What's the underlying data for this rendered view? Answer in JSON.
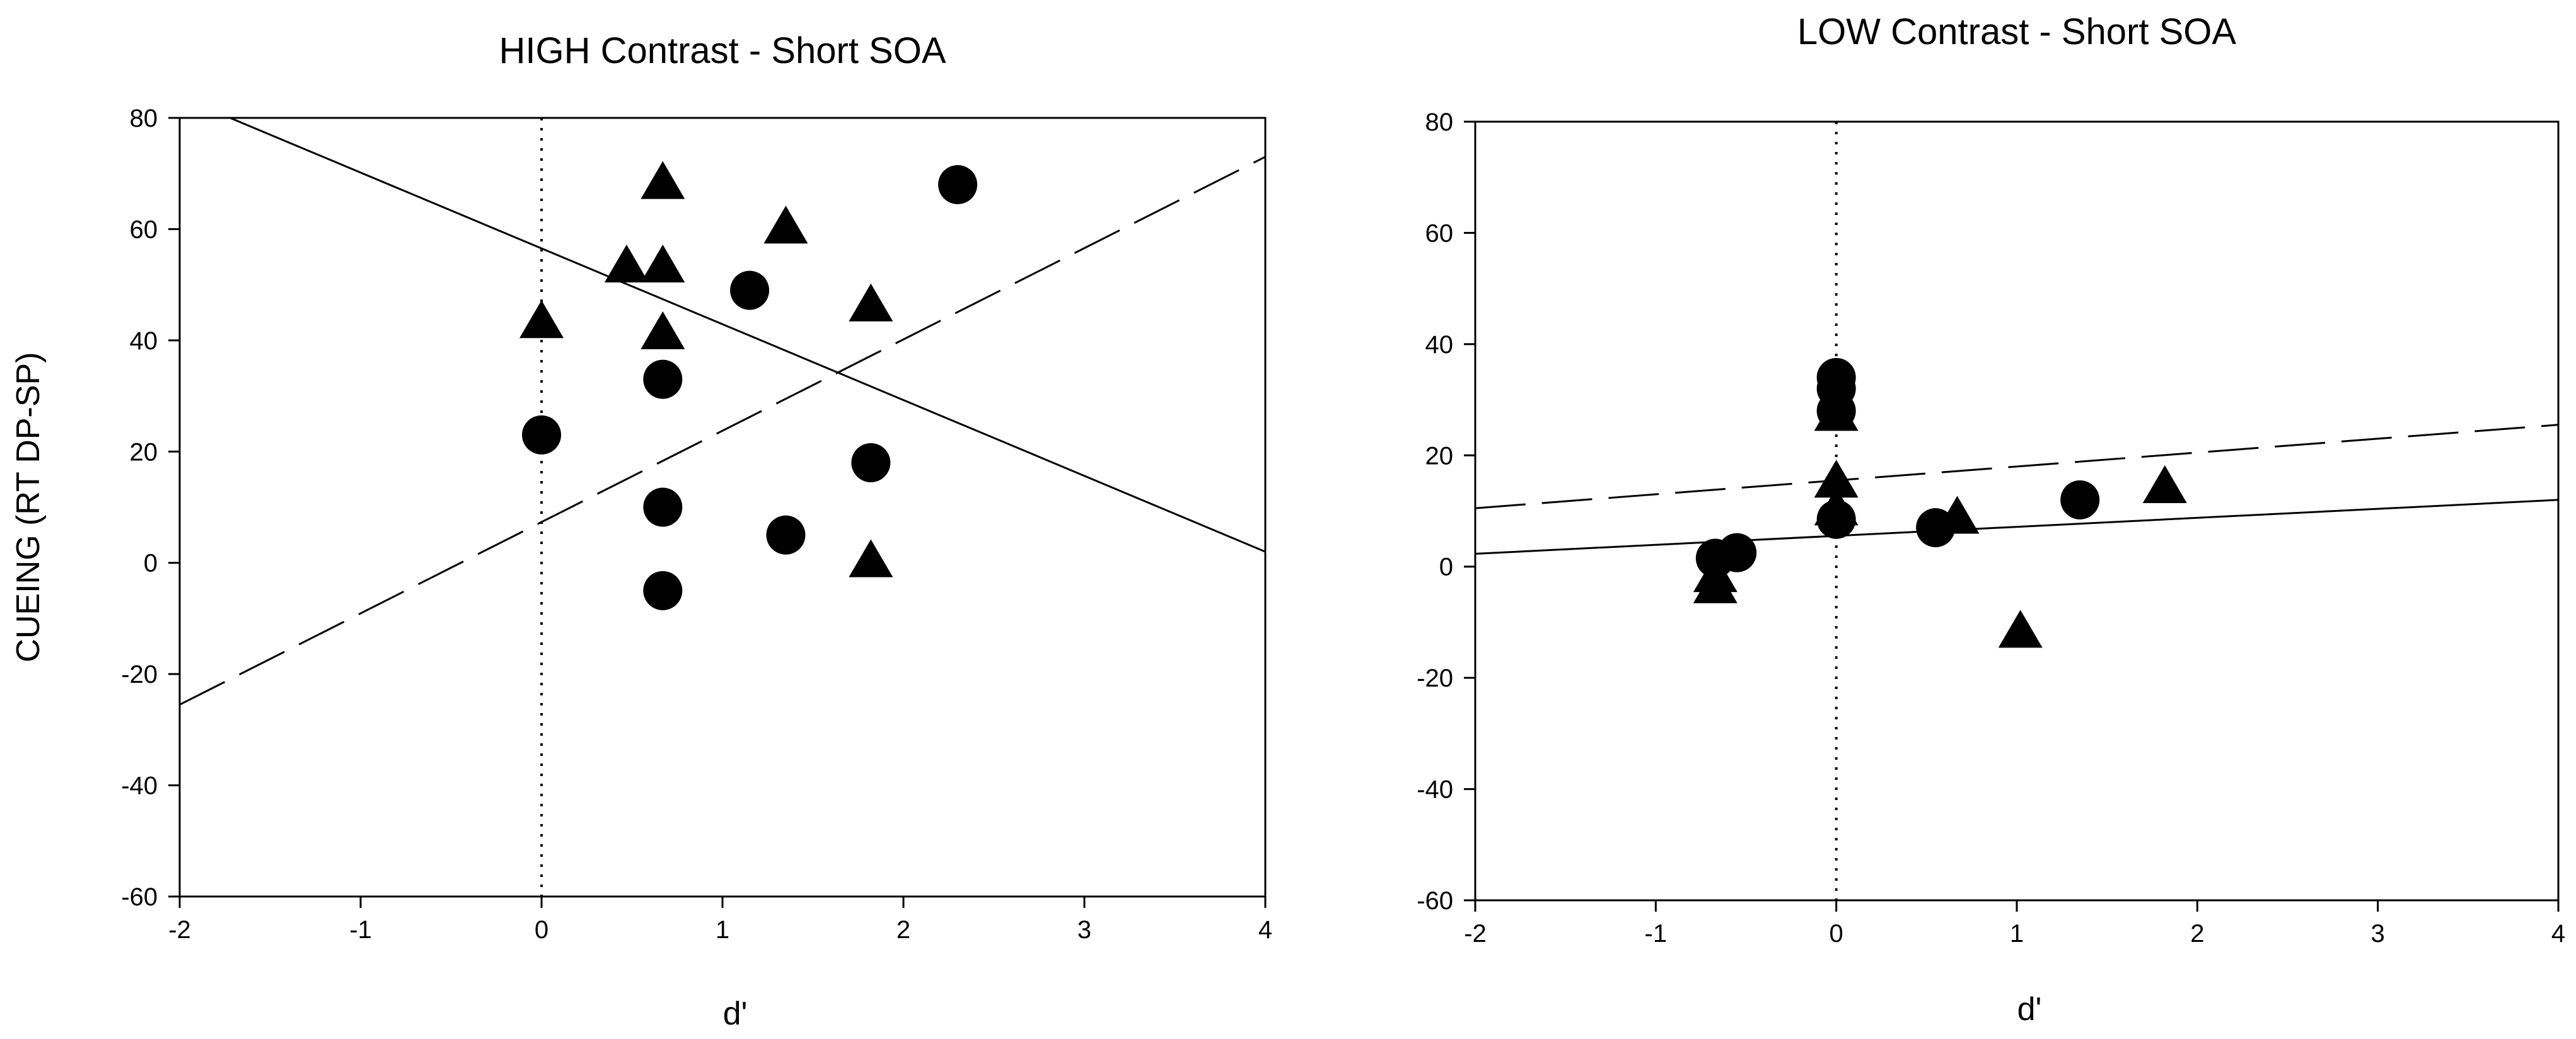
{
  "chart_data": [
    {
      "type": "scatter",
      "title": "HIGH Contrast - Short SOA",
      "xlabel": "d'",
      "ylabel": "CUEING (RT DP-SP)",
      "xlim": [
        -2,
        4
      ],
      "ylim": [
        -60,
        80
      ],
      "xticks": [
        "-2",
        "-1",
        "0",
        "1",
        "2",
        "3",
        "4"
      ],
      "yticks": [
        "-60",
        "-40",
        "-20",
        "0",
        "20",
        "40",
        "60",
        "80"
      ],
      "grid": false,
      "reference_line": {
        "x": 0,
        "style": "dotted"
      },
      "series": [
        {
          "marker": "circle",
          "points": [
            {
              "x": 0.0,
              "y": 23
            },
            {
              "x": 0.67,
              "y": 33
            },
            {
              "x": 0.67,
              "y": 10
            },
            {
              "x": 0.67,
              "y": -5
            },
            {
              "x": 1.15,
              "y": 49
            },
            {
              "x": 1.35,
              "y": 5
            },
            {
              "x": 1.82,
              "y": 18
            },
            {
              "x": 2.3,
              "y": 68
            }
          ]
        },
        {
          "marker": "triangle",
          "points": [
            {
              "x": 0.0,
              "y": 43
            },
            {
              "x": 0.47,
              "y": 53
            },
            {
              "x": 0.67,
              "y": 68
            },
            {
              "x": 0.67,
              "y": 53
            },
            {
              "x": 0.67,
              "y": 41
            },
            {
              "x": 1.35,
              "y": 60
            },
            {
              "x": 1.82,
              "y": 46
            },
            {
              "x": 1.82,
              "y": 0
            }
          ]
        }
      ],
      "fit_lines": [
        {
          "style": "solid",
          "x": [
            -2,
            4
          ],
          "y": [
            83.8,
            2.0
          ]
        },
        {
          "style": "dashed",
          "x": [
            -2,
            4
          ],
          "y": [
            -25.5,
            73.0
          ]
        }
      ]
    },
    {
      "type": "scatter",
      "title": "LOW Contrast - Short SOA",
      "xlabel": "d'",
      "ylabel": "",
      "xlim": [
        -2,
        4
      ],
      "ylim": [
        -60,
        80
      ],
      "xticks": [
        "-2",
        "-1",
        "0",
        "1",
        "2",
        "3",
        "4"
      ],
      "yticks": [
        "-60",
        "-40",
        "-20",
        "0",
        "20",
        "40",
        "60",
        "80"
      ],
      "grid": false,
      "reference_line": {
        "x": 0,
        "style": "dotted"
      },
      "series": [
        {
          "marker": "circle",
          "points": [
            {
              "x": -0.67,
              "y": 1.5
            },
            {
              "x": -0.55,
              "y": 2.5
            },
            {
              "x": 0.0,
              "y": 34
            },
            {
              "x": 0.0,
              "y": 32
            },
            {
              "x": 0.0,
              "y": 28
            },
            {
              "x": 0.0,
              "y": 8.5
            },
            {
              "x": 0.55,
              "y": 7
            },
            {
              "x": 1.35,
              "y": 12
            }
          ]
        },
        {
          "marker": "triangle",
          "points": [
            {
              "x": -0.67,
              "y": -2
            },
            {
              "x": -0.67,
              "y": -4
            },
            {
              "x": 0.0,
              "y": 27
            },
            {
              "x": 0.0,
              "y": 15
            },
            {
              "x": 0.0,
              "y": 10
            },
            {
              "x": 0.67,
              "y": 8.5
            },
            {
              "x": 1.02,
              "y": -12
            },
            {
              "x": 1.82,
              "y": 14
            }
          ]
        }
      ],
      "fit_lines": [
        {
          "style": "solid",
          "x": [
            -2,
            4
          ],
          "y": [
            2.3,
            12.0
          ]
        },
        {
          "style": "dashed",
          "x": [
            -2,
            4
          ],
          "y": [
            10.5,
            25.5
          ]
        }
      ]
    }
  ]
}
